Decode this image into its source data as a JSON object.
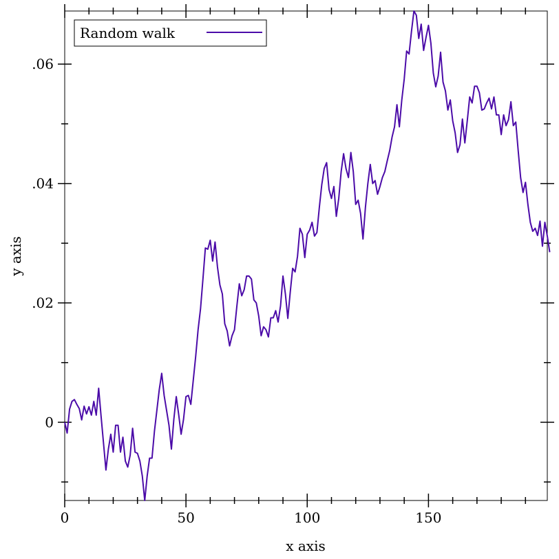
{
  "chart_data": {
    "type": "line",
    "title": "",
    "xlabel": "x axis",
    "ylabel": "y axis",
    "xlim": [
      0,
      199
    ],
    "ylim": [
      -0.0131,
      0.0689
    ],
    "x_ticks": [
      0,
      50,
      100,
      150
    ],
    "x_tick_labels": [
      "0",
      "50",
      "100",
      "150"
    ],
    "x_minor_ticks": [
      10,
      20,
      30,
      40,
      60,
      70,
      80,
      90,
      110,
      120,
      130,
      140,
      160,
      170,
      180,
      190
    ],
    "y_ticks": [
      0,
      0.02,
      0.04,
      0.06
    ],
    "y_tick_labels": [
      "0",
      ".02",
      ".04",
      ".06"
    ],
    "y_minor_ticks": [
      -0.01,
      0.01,
      0.03,
      0.05
    ],
    "grid": false,
    "legend": {
      "placement": "top-left"
    },
    "series": [
      {
        "name": "Random walk",
        "color": "#4B0BA8",
        "x_start": 0,
        "x_step": 1,
        "values": [
          0.0,
          -0.0018,
          0.0022,
          0.0035,
          0.0038,
          0.003,
          0.0023,
          0.0004,
          0.0027,
          0.0014,
          0.0026,
          0.0012,
          0.0035,
          0.0012,
          0.0057,
          0.001,
          -0.0035,
          -0.008,
          -0.0045,
          -0.002,
          -0.005,
          -0.0005,
          -0.0005,
          -0.005,
          -0.0025,
          -0.0065,
          -0.0075,
          -0.0055,
          -0.001,
          -0.005,
          -0.0052,
          -0.0065,
          -0.009,
          -0.0131,
          -0.009,
          -0.006,
          -0.006,
          -0.0015,
          0.002,
          0.0055,
          0.0082,
          0.0045,
          0.002,
          -0.0005,
          -0.0045,
          0.0005,
          0.0043,
          0.0013,
          -0.002,
          0.0005,
          0.0043,
          0.0045,
          0.003,
          0.007,
          0.011,
          0.0155,
          0.019,
          0.024,
          0.0292,
          0.029,
          0.0305,
          0.027,
          0.0302,
          0.026,
          0.023,
          0.0215,
          0.0165,
          0.0153,
          0.0128,
          0.0145,
          0.0155,
          0.0195,
          0.0232,
          0.0212,
          0.0222,
          0.0245,
          0.0245,
          0.024,
          0.0205,
          0.02,
          0.0178,
          0.0145,
          0.016,
          0.0155,
          0.0143,
          0.0175,
          0.0175,
          0.0187,
          0.0168,
          0.0195,
          0.0245,
          0.0215,
          0.0174,
          0.0218,
          0.0258,
          0.0252,
          0.0278,
          0.0325,
          0.0315,
          0.0276,
          0.0315,
          0.0322,
          0.0335,
          0.0312,
          0.0318,
          0.036,
          0.0398,
          0.0425,
          0.0435,
          0.039,
          0.0375,
          0.0395,
          0.0345,
          0.0375,
          0.042,
          0.045,
          0.0425,
          0.041,
          0.0452,
          0.042,
          0.0365,
          0.0372,
          0.035,
          0.0307,
          0.036,
          0.04,
          0.0432,
          0.04,
          0.0405,
          0.0382,
          0.0395,
          0.041,
          0.042,
          0.0438,
          0.0455,
          0.0478,
          0.0495,
          0.0532,
          0.0495,
          0.054,
          0.0575,
          0.0622,
          0.0617,
          0.0655,
          0.0689,
          0.0682,
          0.0643,
          0.0667,
          0.0623,
          0.0645,
          0.0665,
          0.0635,
          0.0585,
          0.0562,
          0.058,
          0.062,
          0.057,
          0.0555,
          0.0523,
          0.054,
          0.0505,
          0.0485,
          0.0452,
          0.0465,
          0.0508,
          0.0468,
          0.0505,
          0.0545,
          0.0535,
          0.0563,
          0.0563,
          0.0552,
          0.0523,
          0.0525,
          0.0535,
          0.0543,
          0.0525,
          0.0545,
          0.0515,
          0.0515,
          0.0482,
          0.0515,
          0.0497,
          0.0507,
          0.0537,
          0.0497,
          0.0503,
          0.0455,
          0.041,
          0.0385,
          0.0402,
          0.0365,
          0.0335,
          0.032,
          0.0325,
          0.0313,
          0.0337,
          0.0295,
          0.0335,
          0.0312,
          0.0285
        ]
      }
    ]
  }
}
